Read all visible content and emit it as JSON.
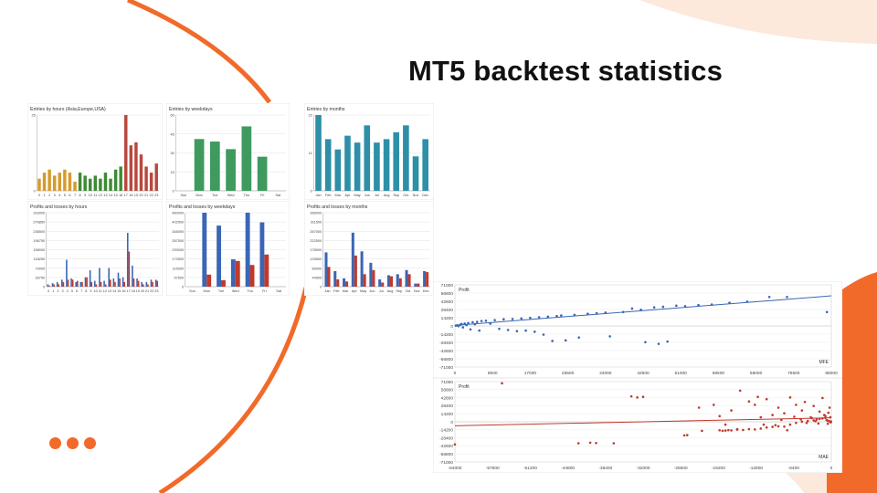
{
  "slide": {
    "title": "MT5 backtest statistics",
    "accent_color": "#f26a2a"
  },
  "chart_data": [
    {
      "type": "bar",
      "title": "Entries by hours (Asia,Europe,USA)",
      "categories": [
        "0",
        "1",
        "2",
        "3",
        "4",
        "5",
        "6",
        "7",
        "8",
        "9",
        "10",
        "11",
        "12",
        "13",
        "14",
        "15",
        "16",
        "17",
        "18",
        "19",
        "20",
        "21",
        "22",
        "23"
      ],
      "series": [
        {
          "values": [
            4,
            6,
            7,
            5,
            6,
            7,
            6,
            3,
            6,
            5,
            4,
            5,
            4,
            6,
            4,
            7,
            8,
            25,
            15,
            16,
            12,
            8,
            6,
            9
          ]
        }
      ],
      "bar_colors": [
        "#d69a2d",
        "#d69a2d",
        "#d69a2d",
        "#d69a2d",
        "#d69a2d",
        "#d69a2d",
        "#d69a2d",
        "#d69a2d",
        "#3e8a35",
        "#3e8a35",
        "#3e8a35",
        "#3e8a35",
        "#3e8a35",
        "#3e8a35",
        "#3e8a35",
        "#3e8a35",
        "#3e8a35",
        "#b8483f",
        "#b8483f",
        "#b8483f",
        "#b8483f",
        "#b8483f",
        "#b8483f",
        "#b8483f"
      ],
      "yticks": [
        "25",
        "0"
      ],
      "ylim": [
        0,
        25
      ]
    },
    {
      "type": "bar",
      "title": "Entries by weekdays",
      "categories": [
        "Sun",
        "Mon",
        "Tue",
        "Wed",
        "Thu",
        "Fri",
        "Sat"
      ],
      "series": [
        {
          "values": [
            0,
            41,
            39,
            33,
            51,
            27,
            0
          ]
        }
      ],
      "bar_color": "#3f9a5e",
      "yticks": [
        "60",
        "45",
        "30",
        "15",
        "0"
      ],
      "ylim": [
        0,
        60
      ]
    },
    {
      "type": "bar",
      "title": "Entries by months",
      "categories": [
        "Jan",
        "Feb",
        "Mar",
        "Apr",
        "May",
        "Jun",
        "Jul",
        "Aug",
        "Sep",
        "Oct",
        "Nov",
        "Dec"
      ],
      "series": [
        {
          "values": [
            22,
            15,
            12,
            16,
            14,
            19,
            14,
            15,
            17,
            19,
            10,
            15
          ]
        }
      ],
      "bar_color": "#2d8fa8",
      "yticks": [
        "22",
        "11",
        "0"
      ],
      "ylim": [
        0,
        22
      ]
    },
    {
      "type": "bar",
      "title": "Profits and losses by hours",
      "categories": [
        "0",
        "1",
        "2",
        "3",
        "4",
        "5",
        "6",
        "7",
        "8",
        "9",
        "10",
        "11",
        "12",
        "13",
        "14",
        "15",
        "16",
        "17",
        "18",
        "19",
        "20",
        "21",
        "22",
        "23"
      ],
      "series": [
        {
          "values": [
            10000,
            15000,
            20000,
            30000,
            115000,
            35000,
            20000,
            20000,
            40000,
            70000,
            25000,
            80000,
            25000,
            80000,
            35000,
            60000,
            40000,
            230000,
            90000,
            35000,
            20000,
            20000,
            30000,
            30000
          ]
        },
        {
          "values": [
            5000,
            10000,
            10000,
            20000,
            30000,
            30000,
            25000,
            20000,
            40000,
            20000,
            10000,
            20000,
            10000,
            30000,
            20000,
            35000,
            20000,
            150000,
            35000,
            25000,
            10000,
            10000,
            20000,
            25000
          ]
        }
      ],
      "series_colors": [
        "#3a66b5",
        "#c0392b"
      ],
      "yticks": [
        "316000",
        "276850",
        "236500",
        "196750",
        "158000",
        "118250",
        "79000",
        "39750",
        "0"
      ],
      "ylim": [
        0,
        316000
      ]
    },
    {
      "type": "bar",
      "title": "Profits and losses by weekdays",
      "categories": [
        "Sun",
        "Mon",
        "Tue",
        "Wed",
        "Thu",
        "Fri",
        "Sat"
      ],
      "series": [
        {
          "values": [
            0,
            460000,
            380000,
            170000,
            460000,
            400000,
            0
          ]
        },
        {
          "values": [
            0,
            75000,
            40000,
            160000,
            135000,
            200000,
            0
          ]
        }
      ],
      "series_colors": [
        "#3a66b5",
        "#c0392b"
      ],
      "yticks": [
        "460000",
        "402500",
        "345000",
        "287500",
        "230000",
        "172500",
        "115000",
        "57500",
        "0"
      ],
      "ylim": [
        0,
        460000
      ]
    },
    {
      "type": "bar",
      "title": "Profits and losses by months",
      "categories": [
        "Jan",
        "Feb",
        "Mar",
        "Apr",
        "May",
        "Jun",
        "Jul",
        "Aug",
        "Sep",
        "Oct",
        "Nov",
        "Dec"
      ],
      "series": [
        {
          "values": [
            165000,
            75000,
            40000,
            260000,
            170000,
            115000,
            35000,
            55000,
            60000,
            80000,
            15000,
            75000
          ]
        },
        {
          "values": [
            95000,
            35000,
            25000,
            150000,
            60000,
            80000,
            20000,
            50000,
            40000,
            60000,
            15000,
            70000
          ]
        }
      ],
      "series_colors": [
        "#3a66b5",
        "#c0392b"
      ],
      "yticks": [
        "356000",
        "311500",
        "267000",
        "222500",
        "178000",
        "133500",
        "89000",
        "44500",
        "0"
      ],
      "ylim": [
        0,
        356000
      ]
    },
    {
      "type": "scatter",
      "title": "Profit",
      "xlabel": "MFE",
      "series_color": "#3a66b5",
      "xlim": [
        0,
        85000
      ],
      "ylim": [
        -71000,
        71000
      ],
      "xticks": [
        "0",
        "8500",
        "17000",
        "25500",
        "34000",
        "42500",
        "51000",
        "59500",
        "68000",
        "76500",
        "85000"
      ],
      "yticks": [
        "71000",
        "56800",
        "42600",
        "28400",
        "14200",
        "0",
        "-14200",
        "-28400",
        "-42600",
        "-56800",
        "-71000"
      ],
      "trend": [
        [
          0,
          1000
        ],
        [
          85000,
          52000
        ]
      ],
      "points": [
        [
          200,
          500
        ],
        [
          500,
          1200
        ],
        [
          800,
          -300
        ],
        [
          1200,
          2000
        ],
        [
          1500,
          3500
        ],
        [
          1800,
          -2500
        ],
        [
          2200,
          4000
        ],
        [
          2600,
          1500
        ],
        [
          3000,
          5000
        ],
        [
          3500,
          -6000
        ],
        [
          4000,
          6500
        ],
        [
          4500,
          3000
        ],
        [
          5000,
          7000
        ],
        [
          5500,
          -8000
        ],
        [
          6000,
          8500
        ],
        [
          7000,
          9000
        ],
        [
          8000,
          4000
        ],
        [
          9000,
          10000
        ],
        [
          10000,
          -5000
        ],
        [
          11000,
          11500
        ],
        [
          12000,
          -7000
        ],
        [
          13000,
          12000
        ],
        [
          14000,
          -9000
        ],
        [
          15000,
          13000
        ],
        [
          16000,
          -8000
        ],
        [
          17000,
          14000
        ],
        [
          18000,
          -10000
        ],
        [
          19000,
          15000
        ],
        [
          20000,
          -15000
        ],
        [
          21000,
          16000
        ],
        [
          22000,
          -26000
        ],
        [
          23000,
          17000
        ],
        [
          24000,
          18000
        ],
        [
          25000,
          -25000
        ],
        [
          27000,
          19000
        ],
        [
          28000,
          -20000
        ],
        [
          30000,
          21000
        ],
        [
          32000,
          22000
        ],
        [
          34000,
          23000
        ],
        [
          35000,
          -18000
        ],
        [
          38000,
          24000
        ],
        [
          40000,
          30000
        ],
        [
          42000,
          28000
        ],
        [
          43000,
          -28000
        ],
        [
          45000,
          32000
        ],
        [
          46000,
          -31000
        ],
        [
          47000,
          33000
        ],
        [
          48000,
          -27000
        ],
        [
          50000,
          35000
        ],
        [
          52000,
          34000
        ],
        [
          55000,
          36000
        ],
        [
          58000,
          37000
        ],
        [
          62000,
          40000
        ],
        [
          66000,
          42000
        ],
        [
          71000,
          50000
        ],
        [
          75000,
          50000
        ],
        [
          84000,
          24000
        ]
      ]
    },
    {
      "type": "scatter",
      "title": "Profit",
      "xlabel": "MAE",
      "series_color": "#c0392b",
      "xlim": [
        -64000,
        0
      ],
      "ylim": [
        -71000,
        71000
      ],
      "xticks": [
        "-64000",
        "-57600",
        "-51200",
        "-44800",
        "-38400",
        "-32000",
        "-25600",
        "-19200",
        "-12800",
        "-6400",
        "0"
      ],
      "yticks": [
        "71000",
        "56800",
        "42600",
        "28400",
        "14200",
        "0",
        "-14200",
        "-28400",
        "-42600",
        "-56800",
        "-71000"
      ],
      "trend": [
        [
          -64000,
          -7000
        ],
        [
          0,
          7000
        ]
      ],
      "points": [
        [
          -64000,
          -40000
        ],
        [
          -56000,
          68000
        ],
        [
          -43000,
          -38000
        ],
        [
          -41000,
          -37000
        ],
        [
          -40000,
          -37500
        ],
        [
          -37000,
          -38000
        ],
        [
          -34000,
          45000
        ],
        [
          -33000,
          43000
        ],
        [
          -32000,
          44000
        ],
        [
          -25000,
          -24000
        ],
        [
          -24500,
          -23500
        ],
        [
          -22500,
          25000
        ],
        [
          -22000,
          -16000
        ],
        [
          -19000,
          -15000
        ],
        [
          -18500,
          -16000
        ],
        [
          -18000,
          -15500
        ],
        [
          -17500,
          -14800
        ],
        [
          -17000,
          -15200
        ],
        [
          -16000,
          -14000
        ],
        [
          -15000,
          -14500
        ],
        [
          -14000,
          -13000
        ],
        [
          -13000,
          -13500
        ],
        [
          -12000,
          -12000
        ],
        [
          -11000,
          -10000
        ],
        [
          -10000,
          -9000
        ],
        [
          -9000,
          -8000
        ],
        [
          -8000,
          -8500
        ],
        [
          -7000,
          -5000
        ],
        [
          -6000,
          -2000
        ],
        [
          -5000,
          500
        ],
        [
          -4000,
          1500
        ],
        [
          -3000,
          2500
        ],
        [
          -2500,
          4000
        ],
        [
          -2000,
          5000
        ],
        [
          -1500,
          6000
        ],
        [
          -1000,
          7000
        ],
        [
          -800,
          3000
        ],
        [
          -600,
          2000
        ],
        [
          -400,
          1000
        ],
        [
          -200,
          500
        ],
        [
          -100,
          -1000
        ],
        [
          -50,
          500
        ],
        [
          -19000,
          10000
        ],
        [
          -18000,
          -5000
        ],
        [
          -17000,
          20000
        ],
        [
          -15500,
          55000
        ],
        [
          -14000,
          36000
        ],
        [
          -13000,
          30000
        ],
        [
          -12500,
          44000
        ],
        [
          -11000,
          40000
        ],
        [
          -10000,
          12000
        ],
        [
          -9000,
          25000
        ],
        [
          -8000,
          15000
        ],
        [
          -7000,
          43000
        ],
        [
          -6000,
          30000
        ],
        [
          -5000,
          20000
        ],
        [
          -4500,
          35000
        ],
        [
          -3500,
          8000
        ],
        [
          -3000,
          28000
        ],
        [
          -2000,
          18000
        ],
        [
          -1500,
          42000
        ],
        [
          -1000,
          10000
        ],
        [
          -500,
          16000
        ],
        [
          -300,
          25000
        ],
        [
          -150,
          8000
        ],
        [
          -7500,
          -15000
        ],
        [
          -12000,
          8000
        ],
        [
          -16000,
          -13000
        ],
        [
          -20000,
          30000
        ],
        [
          -11500,
          -5000
        ],
        [
          -2200,
          -3000
        ],
        [
          -3300,
          6500
        ],
        [
          -4200,
          -2000
        ],
        [
          -5200,
          4500
        ],
        [
          -6300,
          9000
        ],
        [
          -8500,
          3500
        ],
        [
          -9500,
          -6000
        ],
        [
          -1200,
          12000
        ],
        [
          -2700,
          1000
        ],
        [
          -600,
          -3500
        ]
      ]
    }
  ]
}
